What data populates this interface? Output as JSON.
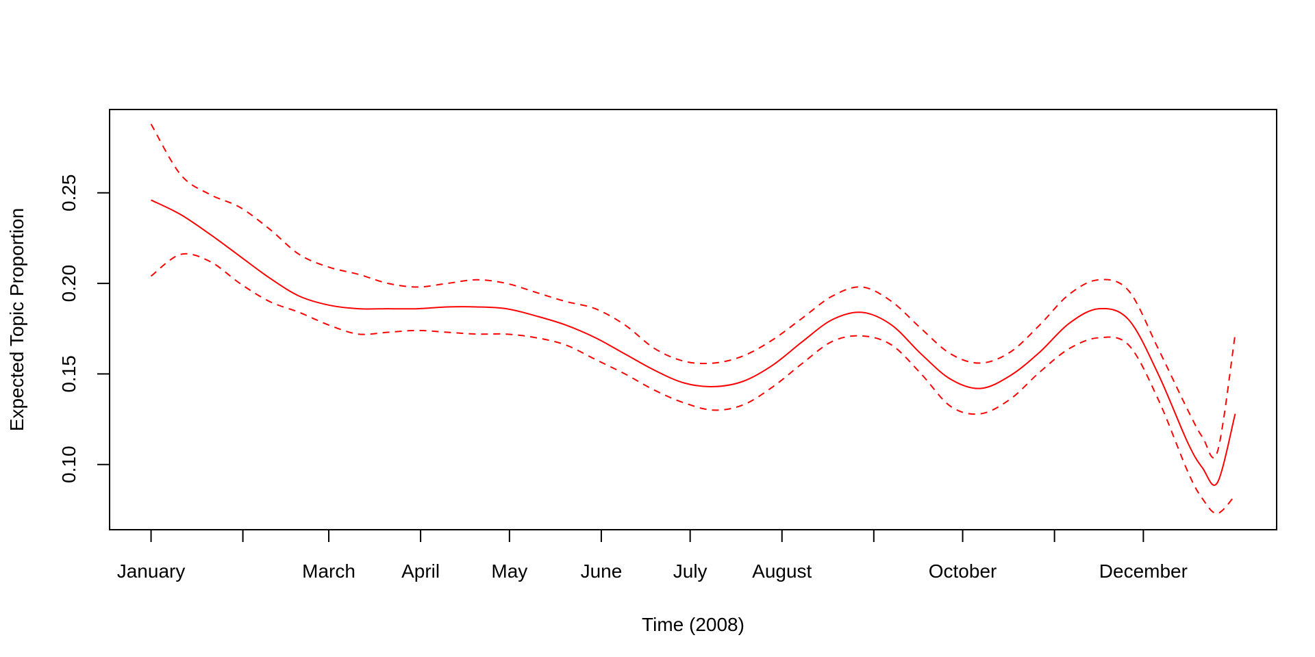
{
  "chart_data": {
    "type": "line",
    "title": "",
    "xlabel": "Time (2008)",
    "ylabel": "Expected Topic Proportion",
    "x_ticks": [
      {
        "x": 0,
        "label": "January"
      },
      {
        "x": 31,
        "label": ""
      },
      {
        "x": 60,
        "label": "March"
      },
      {
        "x": 91,
        "label": "April"
      },
      {
        "x": 121,
        "label": "May"
      },
      {
        "x": 152,
        "label": "June"
      },
      {
        "x": 182,
        "label": "July"
      },
      {
        "x": 213,
        "label": "August"
      },
      {
        "x": 244,
        "label": ""
      },
      {
        "x": 274,
        "label": "October"
      },
      {
        "x": 305,
        "label": ""
      },
      {
        "x": 335,
        "label": "December"
      }
    ],
    "y_ticks": [
      {
        "y": 0.1,
        "label": "0.10"
      },
      {
        "y": 0.15,
        "label": "0.15"
      },
      {
        "y": 0.2,
        "label": "0.20"
      },
      {
        "y": 0.25,
        "label": "0.25"
      }
    ],
    "xlim": [
      -14,
      380
    ],
    "ylim": [
      0.064,
      0.296
    ],
    "grid": false,
    "line_color": "#ff0000",
    "x": [
      0,
      10,
      20,
      30,
      40,
      50,
      60,
      70,
      80,
      90,
      100,
      110,
      120,
      130,
      140,
      150,
      160,
      170,
      180,
      190,
      200,
      210,
      220,
      230,
      240,
      250,
      260,
      270,
      280,
      290,
      300,
      310,
      320,
      330,
      340,
      350,
      355,
      360,
      366
    ],
    "series": [
      {
        "style": "solid",
        "values": [
          0.246,
          0.238,
          0.227,
          0.215,
          0.203,
          0.193,
          0.188,
          0.186,
          0.186,
          0.186,
          0.187,
          0.187,
          0.186,
          0.182,
          0.177,
          0.17,
          0.161,
          0.152,
          0.145,
          0.143,
          0.146,
          0.155,
          0.168,
          0.18,
          0.184,
          0.177,
          0.161,
          0.147,
          0.142,
          0.149,
          0.162,
          0.178,
          0.186,
          0.18,
          0.15,
          0.112,
          0.098,
          0.09,
          0.128
        ]
      },
      {
        "style": "dashed",
        "values": [
          0.288,
          0.26,
          0.249,
          0.242,
          0.23,
          0.216,
          0.209,
          0.205,
          0.2,
          0.198,
          0.2,
          0.202,
          0.2,
          0.195,
          0.19,
          0.186,
          0.177,
          0.164,
          0.157,
          0.156,
          0.16,
          0.169,
          0.181,
          0.193,
          0.198,
          0.19,
          0.175,
          0.161,
          0.156,
          0.162,
          0.177,
          0.194,
          0.202,
          0.196,
          0.164,
          0.13,
          0.115,
          0.107,
          0.172
        ]
      },
      {
        "style": "dashed",
        "values": [
          0.204,
          0.216,
          0.212,
          0.2,
          0.19,
          0.184,
          0.177,
          0.172,
          0.173,
          0.174,
          0.173,
          0.172,
          0.172,
          0.17,
          0.166,
          0.158,
          0.15,
          0.141,
          0.134,
          0.13,
          0.133,
          0.143,
          0.156,
          0.168,
          0.171,
          0.166,
          0.15,
          0.132,
          0.128,
          0.136,
          0.151,
          0.164,
          0.17,
          0.166,
          0.136,
          0.096,
          0.081,
          0.073,
          0.083
        ]
      }
    ]
  }
}
